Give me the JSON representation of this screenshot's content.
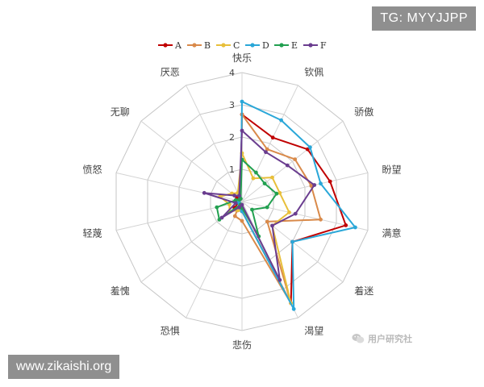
{
  "header": {
    "tg_badge": "TG: MYYJJPP"
  },
  "footer": {
    "site": "www.zikaishi.org",
    "watermark": "用户研究社"
  },
  "chart_data": {
    "type": "radar",
    "title": "",
    "axes": [
      "快乐",
      "钦佩",
      "骄傲",
      "盼望",
      "满意",
      "着迷",
      "渴望",
      "悲伤",
      "恐惧",
      "羞愧",
      "轻蔑",
      "愤怒",
      "无聊",
      "厌恶"
    ],
    "ticks": [
      "1",
      "2",
      "3",
      "4"
    ],
    "rmax": 4,
    "grid": true,
    "legend_position": "top",
    "series": [
      {
        "name": "A",
        "color": "#c00000",
        "values": [
          2.7,
          2.2,
          2.6,
          2.8,
          3.3,
          2.0,
          3.5,
          0.3,
          0.3,
          0.3,
          0.1,
          0.1,
          0.2,
          0.1
        ]
      },
      {
        "name": "B",
        "color": "#d98a4a",
        "values": [
          2.7,
          1.8,
          2.1,
          2.2,
          2.5,
          1.0,
          3.5,
          0.6,
          0.5,
          0.1,
          0.1,
          0.1,
          0.1,
          0.1
        ]
      },
      {
        "name": "C",
        "color": "#e8bf3a",
        "values": [
          1.5,
          0.8,
          1.2,
          1.2,
          1.5,
          1.2,
          3.5,
          0.3,
          0.3,
          0.5,
          0.4,
          0.7,
          0.4,
          0.3
        ]
      },
      {
        "name": "D",
        "color": "#2aa7d8",
        "values": [
          3.1,
          2.8,
          2.7,
          2.5,
          3.6,
          2.0,
          3.7,
          0.3,
          0.2,
          0.1,
          0.1,
          0.1,
          0.1,
          0.1
        ]
      },
      {
        "name": "E",
        "color": "#22a050",
        "values": [
          1.3,
          1.0,
          0.9,
          1.1,
          0.8,
          0.4,
          1.2,
          0.2,
          0.1,
          0.9,
          0.8,
          0.2,
          0.1,
          0.1
        ]
      },
      {
        "name": "F",
        "color": "#6a3d8f",
        "values": [
          2.2,
          1.7,
          1.8,
          2.3,
          1.7,
          1.2,
          2.7,
          0.1,
          0.2,
          0.8,
          0.2,
          1.2,
          0.3,
          0.2
        ]
      }
    ]
  }
}
